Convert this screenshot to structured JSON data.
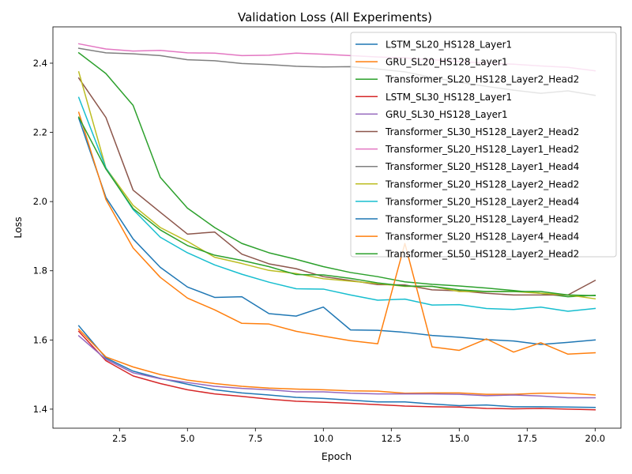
{
  "chart_data": {
    "type": "line",
    "title": "Validation Loss (All Experiments)",
    "xlabel": "Epoch",
    "ylabel": "Loss",
    "xlim": [
      0.05,
      20.95
    ],
    "ylim": [
      1.345,
      2.505
    ],
    "xticks": [
      2.5,
      5.0,
      7.5,
      10.0,
      12.5,
      15.0,
      17.5,
      20.0
    ],
    "xtick_labels": [
      "2.5",
      "5.0",
      "7.5",
      "10.0",
      "12.5",
      "15.0",
      "17.5",
      "20.0"
    ],
    "yticks": [
      1.4,
      1.6,
      1.8,
      2.0,
      2.2,
      2.4
    ],
    "ytick_labels": [
      "1.4",
      "1.6",
      "1.8",
      "2.0",
      "2.2",
      "2.4"
    ],
    "grid": false,
    "legend_position": "top-right",
    "x": [
      1,
      2,
      3,
      4,
      5,
      6,
      7,
      8,
      9,
      10,
      11,
      12,
      13,
      14,
      15,
      16,
      17,
      18,
      19,
      20
    ],
    "series": [
      {
        "name": "LSTM_SL20_HS128_Layer1",
        "color": "#1f77b4",
        "values": [
          1.641,
          1.548,
          1.51,
          1.489,
          1.472,
          1.456,
          1.447,
          1.441,
          1.434,
          1.431,
          1.426,
          1.421,
          1.421,
          1.415,
          1.41,
          1.412,
          1.407,
          1.407,
          1.406,
          1.405
        ]
      },
      {
        "name": "GRU_SL20_HS128_Layer1",
        "color": "#ff7f0e",
        "values": [
          1.631,
          1.551,
          1.522,
          1.5,
          1.484,
          1.474,
          1.466,
          1.461,
          1.458,
          1.456,
          1.453,
          1.452,
          1.446,
          1.447,
          1.447,
          1.443,
          1.443,
          1.446,
          1.446,
          1.441
        ]
      },
      {
        "name": "Transformer_SL20_HS128_Layer2_Head2",
        "color": "#2ca02c",
        "values": [
          2.43,
          2.37,
          2.278,
          2.07,
          1.981,
          1.925,
          1.879,
          1.852,
          1.833,
          1.812,
          1.795,
          1.783,
          1.768,
          1.761,
          1.756,
          1.75,
          1.743,
          1.735,
          1.725,
          1.729
        ]
      },
      {
        "name": "LSTM_SL30_HS128_Layer1",
        "color": "#d62728",
        "values": [
          1.625,
          1.54,
          1.496,
          1.474,
          1.456,
          1.444,
          1.437,
          1.429,
          1.423,
          1.42,
          1.417,
          1.413,
          1.409,
          1.407,
          1.406,
          1.402,
          1.401,
          1.402,
          1.4,
          1.398
        ]
      },
      {
        "name": "GRU_SL30_HS128_Layer1",
        "color": "#9467bd",
        "values": [
          1.612,
          1.544,
          1.505,
          1.488,
          1.477,
          1.466,
          1.46,
          1.456,
          1.45,
          1.45,
          1.446,
          1.444,
          1.444,
          1.444,
          1.443,
          1.439,
          1.441,
          1.438,
          1.433,
          1.433
        ]
      },
      {
        "name": "Transformer_SL30_HS128_Layer2_Head2",
        "color": "#8c564b",
        "values": [
          2.357,
          2.243,
          2.033,
          1.969,
          1.906,
          1.912,
          1.848,
          1.82,
          1.806,
          1.783,
          1.772,
          1.76,
          1.759,
          1.745,
          1.742,
          1.735,
          1.73,
          1.73,
          1.73,
          1.772
        ]
      },
      {
        "name": "Transformer_SL20_HS128_Layer1_Head2",
        "color": "#e377c2",
        "values": [
          2.456,
          2.441,
          2.435,
          2.437,
          2.43,
          2.429,
          2.422,
          2.423,
          2.429,
          2.426,
          2.422,
          2.418,
          2.415,
          2.41,
          2.405,
          2.4,
          2.397,
          2.392,
          2.388,
          2.378
        ]
      },
      {
        "name": "Transformer_SL20_HS128_Layer1_Head4",
        "color": "#7f7f7f",
        "values": [
          2.443,
          2.43,
          2.427,
          2.422,
          2.41,
          2.407,
          2.399,
          2.396,
          2.391,
          2.389,
          2.39,
          2.383,
          2.375,
          2.359,
          2.345,
          2.333,
          2.322,
          2.313,
          2.32,
          2.307
        ]
      },
      {
        "name": "Transformer_SL20_HS128_Layer2_Head2",
        "color": "#bcbd22",
        "values": [
          2.375,
          2.097,
          1.989,
          1.925,
          1.885,
          1.839,
          1.821,
          1.801,
          1.792,
          1.777,
          1.77,
          1.763,
          1.755,
          1.755,
          1.74,
          1.74,
          1.74,
          1.735,
          1.73,
          1.719
        ]
      },
      {
        "name": "Transformer_SL20_HS128_Layer2_Head4",
        "color": "#17becf",
        "values": [
          2.301,
          2.097,
          1.977,
          1.897,
          1.852,
          1.817,
          1.79,
          1.767,
          1.748,
          1.747,
          1.73,
          1.715,
          1.718,
          1.701,
          1.702,
          1.691,
          1.688,
          1.695,
          1.683,
          1.691
        ]
      },
      {
        "name": "Transformer_SL20_HS128_Layer4_Head2",
        "color": "#1f77b4",
        "values": [
          2.241,
          2.012,
          1.892,
          1.81,
          1.753,
          1.723,
          1.725,
          1.676,
          1.669,
          1.695,
          1.629,
          1.628,
          1.622,
          1.613,
          1.608,
          1.601,
          1.597,
          1.587,
          1.593,
          1.6
        ]
      },
      {
        "name": "Transformer_SL20_HS128_Layer4_Head4",
        "color": "#ff7f0e",
        "values": [
          2.258,
          2.006,
          1.866,
          1.781,
          1.721,
          1.687,
          1.648,
          1.646,
          1.625,
          1.611,
          1.598,
          1.589,
          1.879,
          1.58,
          1.57,
          1.603,
          1.565,
          1.592,
          1.559,
          1.563
        ]
      },
      {
        "name": "Transformer_SL50_HS128_Layer2_Head2",
        "color": "#2ca02c",
        "values": [
          2.244,
          2.094,
          1.98,
          1.918,
          1.873,
          1.845,
          1.83,
          1.812,
          1.789,
          1.788,
          1.778,
          1.765,
          1.756,
          1.755,
          1.745,
          1.74,
          1.74,
          1.74,
          1.73,
          1.728
        ]
      }
    ]
  }
}
